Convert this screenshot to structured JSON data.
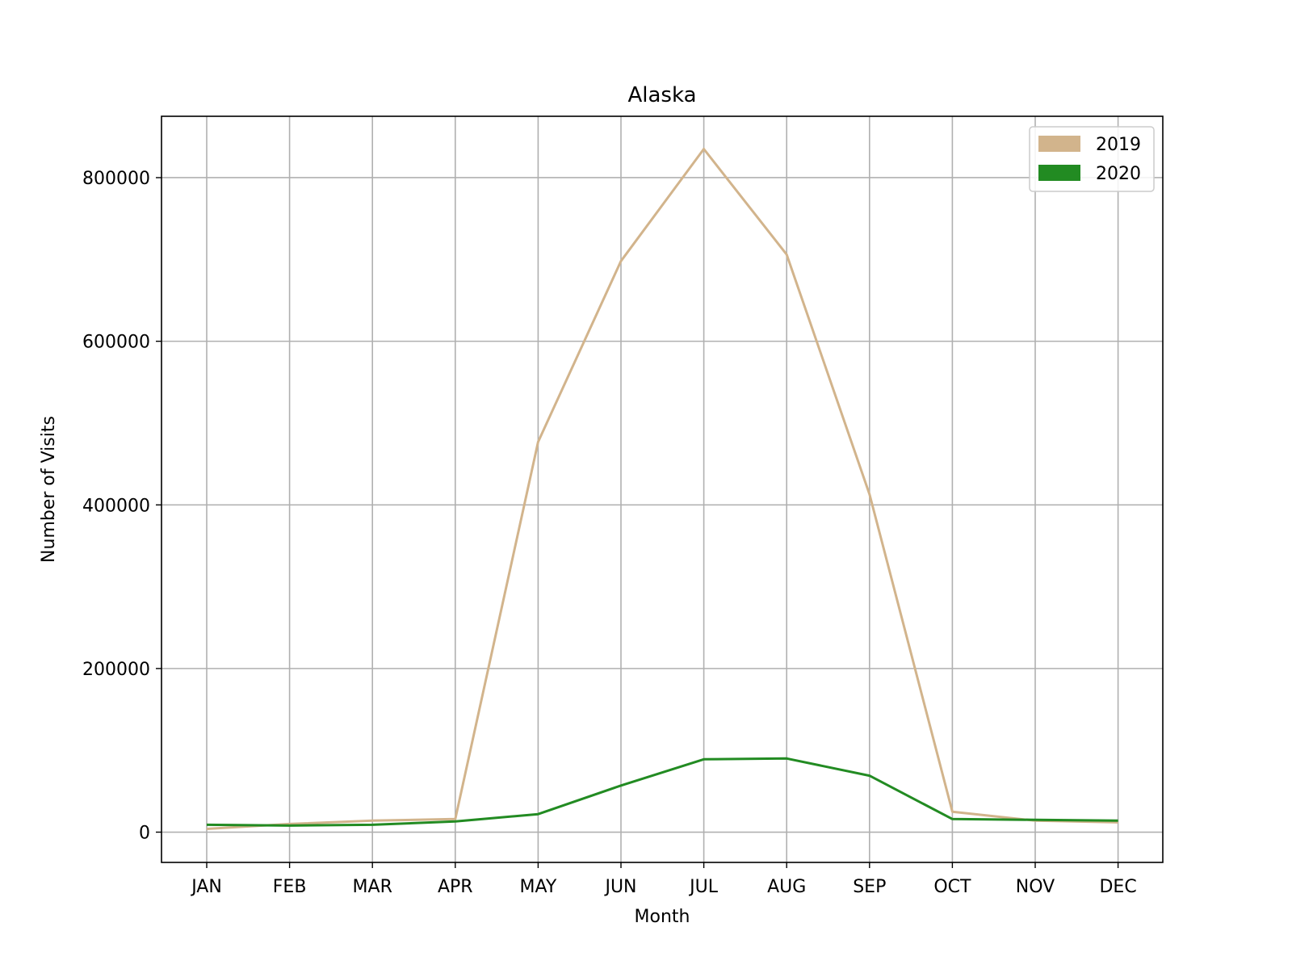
{
  "chart_data": {
    "type": "line",
    "title": "Alaska",
    "xlabel": "Month",
    "ylabel": "Number of Visits",
    "categories": [
      "JAN",
      "FEB",
      "MAR",
      "APR",
      "MAY",
      "JUN",
      "JUL",
      "AUG",
      "SEP",
      "OCT",
      "NOV",
      "DEC"
    ],
    "ylim": [
      -37000,
      875000
    ],
    "yticks": [
      0,
      200000,
      400000,
      600000,
      800000
    ],
    "ytick_labels": [
      "0",
      "200000",
      "400000",
      "600000",
      "800000"
    ],
    "grid": true,
    "legend_position": "top-right",
    "series": [
      {
        "name": "2019",
        "color": "#d2b48c",
        "values": [
          4000,
          10000,
          14000,
          16000,
          477000,
          698000,
          835000,
          706000,
          413000,
          25000,
          14000,
          12000
        ]
      },
      {
        "name": "2020",
        "color": "#228b22",
        "values": [
          9000,
          8000,
          9000,
          13000,
          22000,
          57000,
          89000,
          90000,
          69000,
          16000,
          15000,
          14000
        ]
      }
    ]
  }
}
